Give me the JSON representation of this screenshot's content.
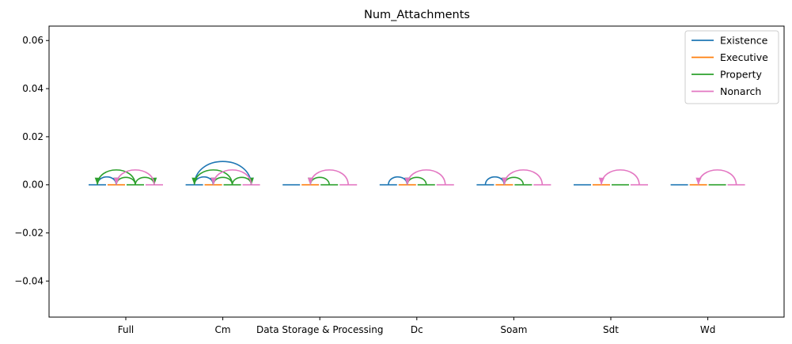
{
  "chart_data": {
    "type": "line",
    "title": "Num_Attachments",
    "xlabel": "",
    "ylabel": "",
    "ylim": [
      -0.055,
      0.066
    ],
    "yticks": [
      -0.04,
      -0.02,
      0.0,
      0.02,
      0.04,
      0.06
    ],
    "ytick_labels": [
      "−0.04",
      "−0.02",
      "0.00",
      "0.02",
      "0.04",
      "0.06"
    ],
    "categories": [
      "Full",
      "Cm",
      "Data Storage & Processing",
      "Dc",
      "Soam",
      "Sdt",
      "Wd"
    ],
    "series": [
      {
        "name": "Existence",
        "color": "#1f77b4"
      },
      {
        "name": "Executive",
        "color": "#ff7f0e"
      },
      {
        "name": "Property",
        "color": "#2ca02c"
      },
      {
        "name": "Nonarch",
        "color": "#e377c2"
      }
    ],
    "legend_position": "top-right",
    "grid": false,
    "arcs": [
      {
        "group": "Full",
        "series": "Existence",
        "from": 0,
        "to": 1,
        "height": 0.0033
      },
      {
        "group": "Full",
        "series": "Property",
        "from": 2,
        "to": 0,
        "height": 0.0062
      },
      {
        "group": "Full",
        "series": "Property",
        "from": 2,
        "to": 1,
        "height": 0.0031
      },
      {
        "group": "Full",
        "series": "Property",
        "from": 2,
        "to": 3,
        "height": 0.0031
      },
      {
        "group": "Full",
        "series": "Nonarch",
        "from": 3,
        "to": 1,
        "height": 0.0062
      },
      {
        "group": "Cm",
        "series": "Existence",
        "from": 0,
        "to": 3,
        "height": 0.0097
      },
      {
        "group": "Cm",
        "series": "Existence",
        "from": 0,
        "to": 1,
        "height": 0.0033
      },
      {
        "group": "Cm",
        "series": "Property",
        "from": 2,
        "to": 0,
        "height": 0.0062
      },
      {
        "group": "Cm",
        "series": "Property",
        "from": 2,
        "to": 1,
        "height": 0.0031
      },
      {
        "group": "Cm",
        "series": "Property",
        "from": 2,
        "to": 3,
        "height": 0.0031
      },
      {
        "group": "Cm",
        "series": "Nonarch",
        "from": 3,
        "to": 1,
        "height": 0.0062
      },
      {
        "group": "Data Storage & Processing",
        "series": "Property",
        "from": 2,
        "to": 1,
        "height": 0.0031
      },
      {
        "group": "Data Storage & Processing",
        "series": "Nonarch",
        "from": 3,
        "to": 1,
        "height": 0.0062
      },
      {
        "group": "Dc",
        "series": "Existence",
        "from": 0,
        "to": 1,
        "height": 0.0033
      },
      {
        "group": "Dc",
        "series": "Property",
        "from": 2,
        "to": 1,
        "height": 0.0031
      },
      {
        "group": "Dc",
        "series": "Nonarch",
        "from": 3,
        "to": 1,
        "height": 0.0062
      },
      {
        "group": "Soam",
        "series": "Existence",
        "from": 0,
        "to": 1,
        "height": 0.0033
      },
      {
        "group": "Soam",
        "series": "Property",
        "from": 2,
        "to": 1,
        "height": 0.0031
      },
      {
        "group": "Soam",
        "series": "Nonarch",
        "from": 3,
        "to": 1,
        "height": 0.0062
      },
      {
        "group": "Sdt",
        "series": "Nonarch",
        "from": 3,
        "to": 1,
        "height": 0.0062
      },
      {
        "group": "Wd",
        "series": "Nonarch",
        "from": 3,
        "to": 1,
        "height": 0.0062
      }
    ]
  }
}
